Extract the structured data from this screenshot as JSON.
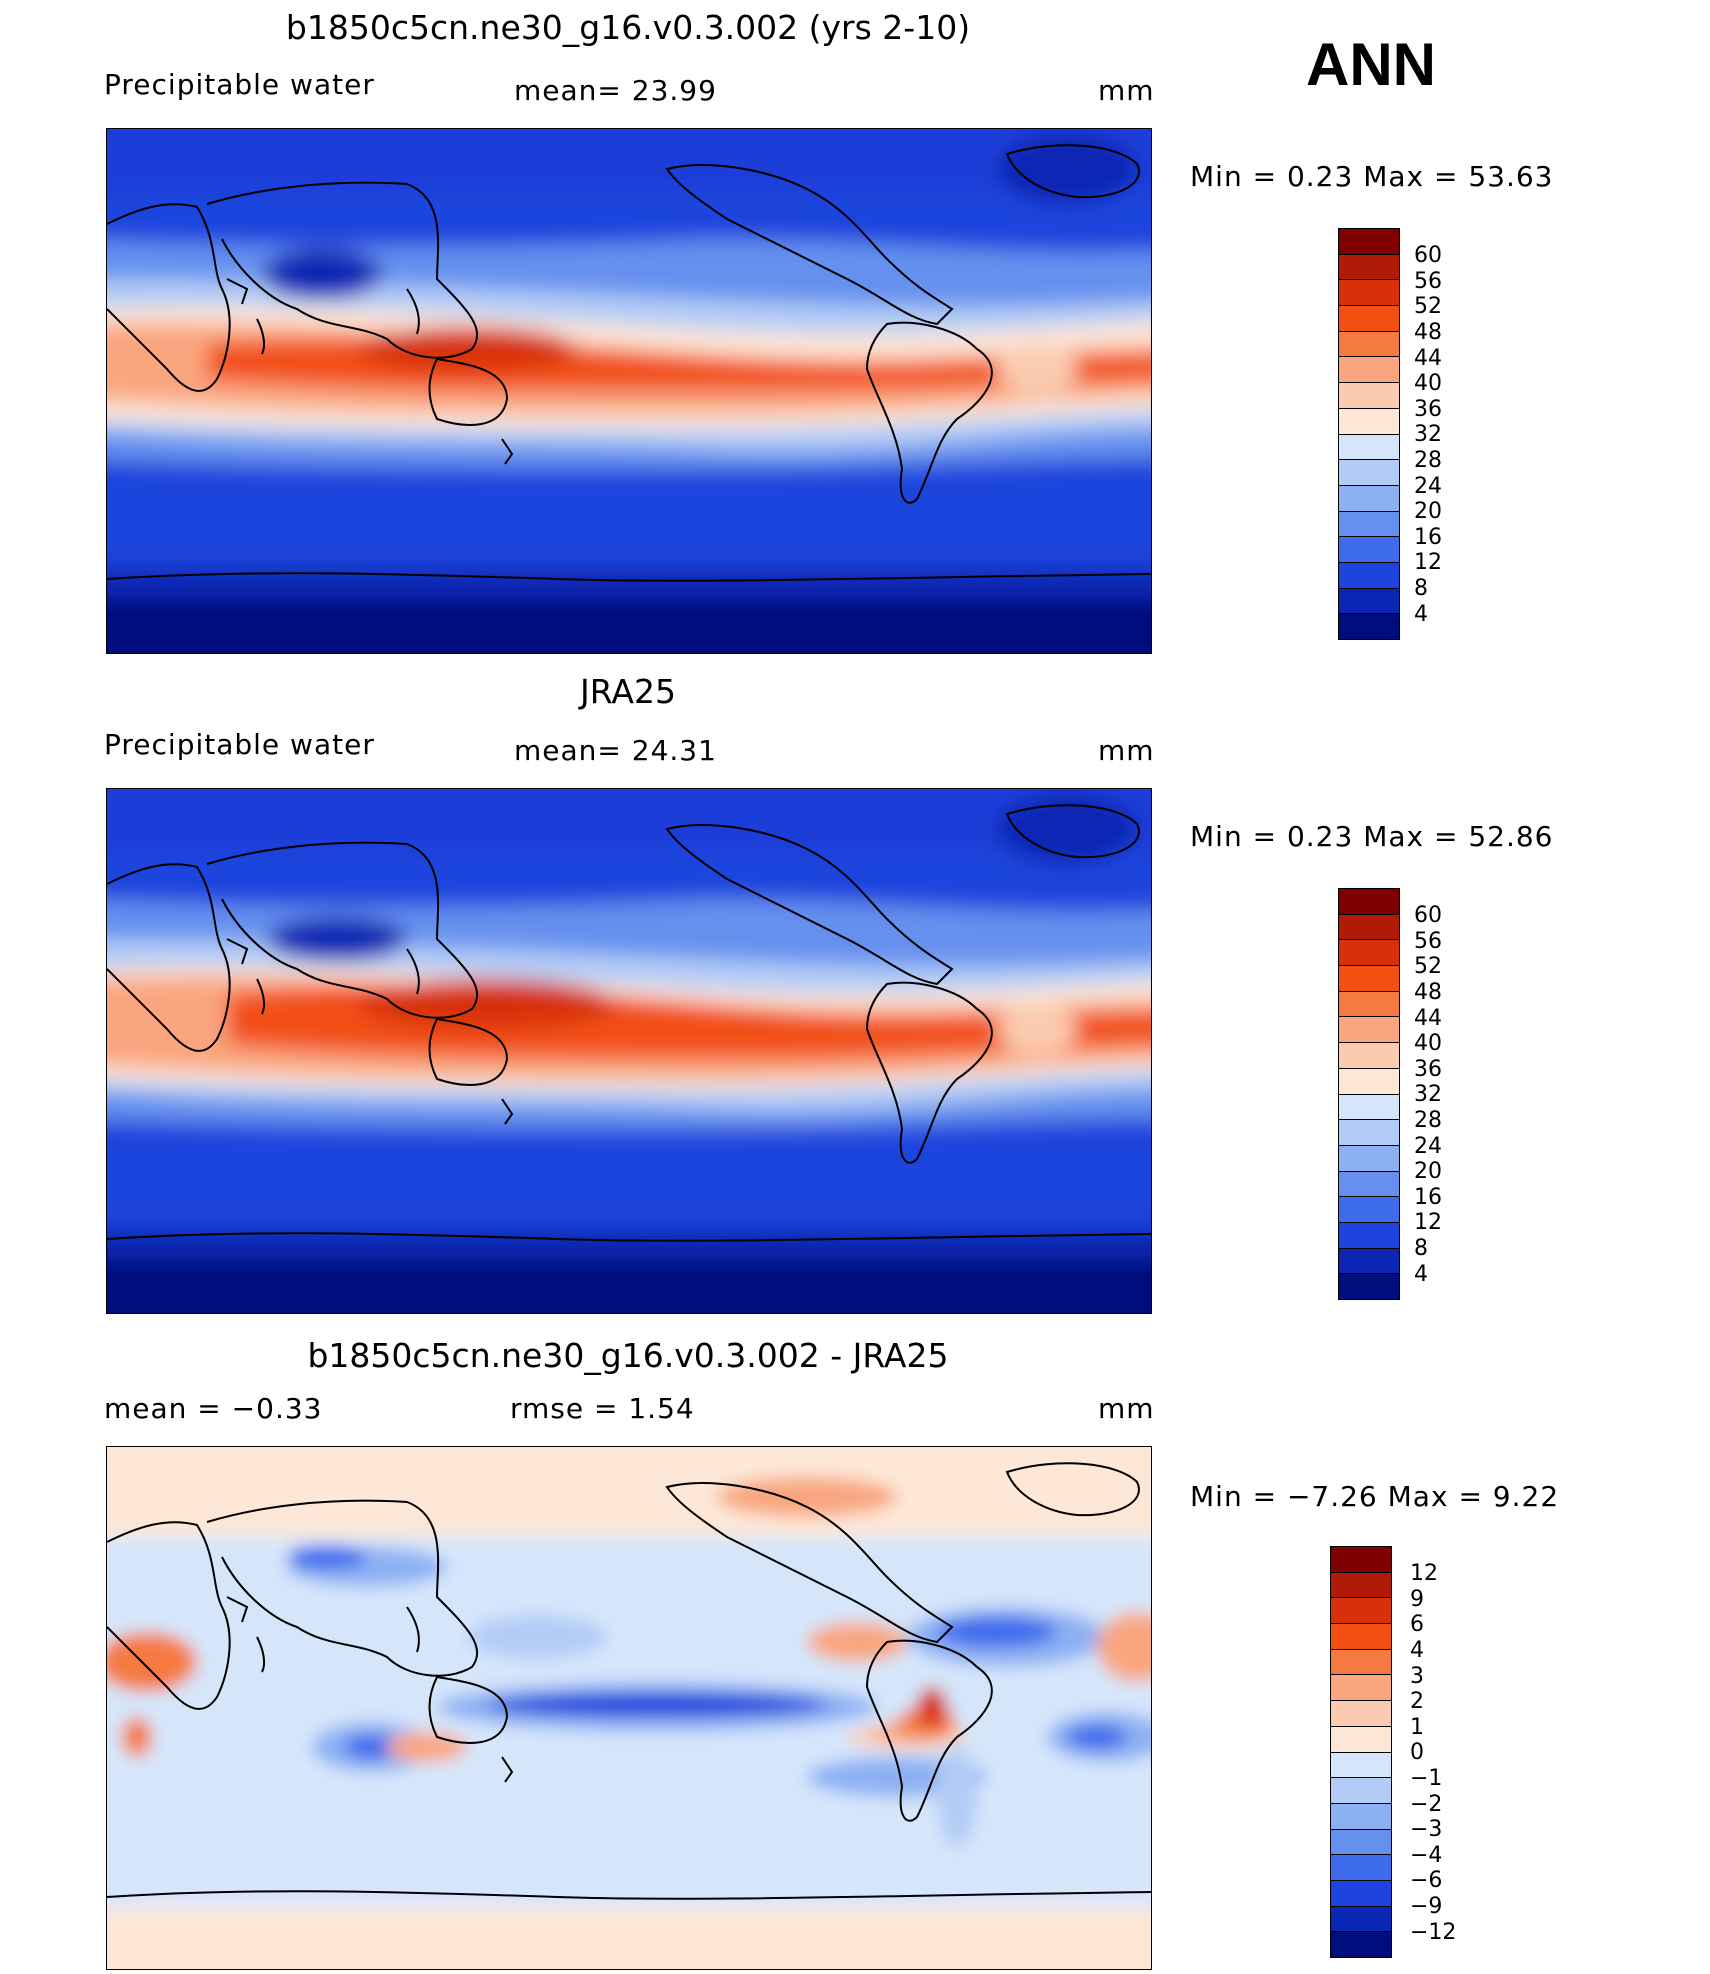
{
  "season": "ANN",
  "units_label": "mm",
  "panels": [
    {
      "title": "b1850c5cn.ne30_g16.v0.3.002 (yrs 2-10)",
      "left_label": "Precipitable  water",
      "mean_text": "mean=   23.99",
      "minmax_text": "Min  =     0.23  Max  =    53.63",
      "colorbar": {
        "ticks": [
          "60",
          "56",
          "52",
          "48",
          "44",
          "40",
          "36",
          "32",
          "28",
          "24",
          "20",
          "16",
          "12",
          "8",
          "4"
        ],
        "colors": [
          "#7f0000",
          "#b01a06",
          "#d8300b",
          "#f24f12",
          "#f57a42",
          "#f9a67f",
          "#fbcbb0",
          "#fde7d7",
          "#d5e6fb",
          "#b2ccf6",
          "#8db0f3",
          "#6590ee",
          "#3e6bec",
          "#1d44dd",
          "#0b26b4",
          "#000e7d"
        ]
      }
    },
    {
      "title": "JRA25",
      "left_label": "Precipitable  water",
      "mean_text": "mean=   24.31",
      "minmax_text": "Min  =     0.23  Max  =    52.86",
      "colorbar": {
        "ticks": [
          "60",
          "56",
          "52",
          "48",
          "44",
          "40",
          "36",
          "32",
          "28",
          "24",
          "20",
          "16",
          "12",
          "8",
          "4"
        ],
        "colors": [
          "#7f0000",
          "#b01a06",
          "#d8300b",
          "#f24f12",
          "#f57a42",
          "#f9a67f",
          "#fbcbb0",
          "#fde7d7",
          "#d5e6fb",
          "#b2ccf6",
          "#8db0f3",
          "#6590ee",
          "#3e6bec",
          "#1d44dd",
          "#0b26b4",
          "#000e7d"
        ]
      }
    },
    {
      "title": "b1850c5cn.ne30_g16.v0.3.002 - JRA25",
      "left_label": "mean  =    −0.33",
      "mean_text": "rmse  =     1.54",
      "minmax_text": "Min  =   −7.26  Max  =     9.22",
      "colorbar": {
        "ticks": [
          "12",
          "9",
          "6",
          "4",
          "3",
          "2",
          "1",
          "0",
          "−1",
          "−2",
          "−3",
          "−4",
          "−6",
          "−9",
          "−12"
        ],
        "colors": [
          "#7f0000",
          "#b01a06",
          "#d8300b",
          "#f24f12",
          "#f57a42",
          "#f9a67f",
          "#fbcbb0",
          "#fde7d7",
          "#d5e6fb",
          "#b2ccf6",
          "#8db0f3",
          "#6590ee",
          "#3e6bec",
          "#1d44dd",
          "#0b26b4",
          "#000e7d"
        ]
      }
    }
  ]
}
